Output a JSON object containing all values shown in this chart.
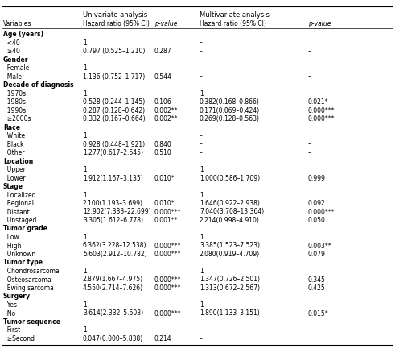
{
  "col_x_fracs": {
    "var": 0.002,
    "uni_hr": 0.21,
    "uni_p": 0.385,
    "multi_hr": 0.505,
    "multi_p": 0.78
  },
  "rows": [
    {
      "label": "Age (years)",
      "indent": false,
      "bold": true,
      "uni_hr": "",
      "uni_p": "",
      "multi_hr": "",
      "multi_p": ""
    },
    {
      "label": "<40",
      "indent": true,
      "bold": false,
      "uni_hr": "1",
      "uni_p": "",
      "multi_hr": "–",
      "multi_p": ""
    },
    {
      "label": "≥40",
      "indent": true,
      "bold": false,
      "uni_hr": "0.797 (0.525–1.210)",
      "uni_p": "0.287",
      "multi_hr": "–",
      "multi_p": "–"
    },
    {
      "label": "Gender",
      "indent": false,
      "bold": true,
      "uni_hr": "",
      "uni_p": "",
      "multi_hr": "",
      "multi_p": ""
    },
    {
      "label": "Female",
      "indent": true,
      "bold": false,
      "uni_hr": "1",
      "uni_p": "",
      "multi_hr": "–",
      "multi_p": ""
    },
    {
      "label": "Male",
      "indent": true,
      "bold": false,
      "uni_hr": "1.136 (0.752–1.717)",
      "uni_p": "0.544",
      "multi_hr": "–",
      "multi_p": "–"
    },
    {
      "label": "Decade of diagnosis",
      "indent": false,
      "bold": true,
      "uni_hr": "",
      "uni_p": "",
      "multi_hr": "",
      "multi_p": ""
    },
    {
      "label": "1970s",
      "indent": true,
      "bold": false,
      "uni_hr": "1",
      "uni_p": "",
      "multi_hr": "1",
      "multi_p": ""
    },
    {
      "label": "1980s",
      "indent": true,
      "bold": false,
      "uni_hr": "0.528 (0.244–1.145)",
      "uni_p": "0.106",
      "multi_hr": "0.382(0.168–0.866)",
      "multi_p": "0.021*"
    },
    {
      "label": "1990s",
      "indent": true,
      "bold": false,
      "uni_hr": "0.287 (0.128–0.642)",
      "uni_p": "0.002**",
      "multi_hr": "0.171(0.069–0.424)",
      "multi_p": "0.000***"
    },
    {
      "label": "≥2000s",
      "indent": true,
      "bold": false,
      "uni_hr": "0.332 (0.167–0.664)",
      "uni_p": "0.002**",
      "multi_hr": "0.269(0.128–0.563)",
      "multi_p": "0.000***"
    },
    {
      "label": "Race",
      "indent": false,
      "bold": true,
      "uni_hr": "",
      "uni_p": "",
      "multi_hr": "",
      "multi_p": ""
    },
    {
      "label": "White",
      "indent": true,
      "bold": false,
      "uni_hr": "1",
      "uni_p": "",
      "multi_hr": "–",
      "multi_p": ""
    },
    {
      "label": "Black",
      "indent": true,
      "bold": false,
      "uni_hr": "0.928 (0.448–1.921)",
      "uni_p": "0.840",
      "multi_hr": "–",
      "multi_p": "–"
    },
    {
      "label": "Other",
      "indent": true,
      "bold": false,
      "uni_hr": "1.277(0.617–2.645)",
      "uni_p": "0.510",
      "multi_hr": "–",
      "multi_p": "–"
    },
    {
      "label": "Location",
      "indent": false,
      "bold": true,
      "uni_hr": "",
      "uni_p": "",
      "multi_hr": "",
      "multi_p": ""
    },
    {
      "label": "Upper",
      "indent": true,
      "bold": false,
      "uni_hr": "1",
      "uni_p": "",
      "multi_hr": "1",
      "multi_p": ""
    },
    {
      "label": "Lower",
      "indent": true,
      "bold": false,
      "uni_hr": "1.912(1.167–3.135)",
      "uni_p": "0.010*",
      "multi_hr": "1.000(0.586–1.709)",
      "multi_p": "0.999"
    },
    {
      "label": "Stage",
      "indent": false,
      "bold": true,
      "uni_hr": "",
      "uni_p": "",
      "multi_hr": "",
      "multi_p": ""
    },
    {
      "label": "Localized",
      "indent": true,
      "bold": false,
      "uni_hr": "1",
      "uni_p": "",
      "multi_hr": "1",
      "multi_p": ""
    },
    {
      "label": "Regional",
      "indent": true,
      "bold": false,
      "uni_hr": "2.100(1.193–3.699)",
      "uni_p": "0.010*",
      "multi_hr": "1.646(0.922–2.938)",
      "multi_p": "0.092"
    },
    {
      "label": "Distant",
      "indent": true,
      "bold": false,
      "uni_hr": "12.902(7.333–22.699)",
      "uni_p": "0.000***",
      "multi_hr": "7.040(3.708–13.364)",
      "multi_p": "0.000***"
    },
    {
      "label": "Unstaged",
      "indent": true,
      "bold": false,
      "uni_hr": "3.305(1.612–6.778)",
      "uni_p": "0.001**",
      "multi_hr": "2.214(0.998–4.910)",
      "multi_p": "0.050"
    },
    {
      "label": "Tumor grade",
      "indent": false,
      "bold": true,
      "uni_hr": "",
      "uni_p": "",
      "multi_hr": "",
      "multi_p": ""
    },
    {
      "label": "Low",
      "indent": true,
      "bold": false,
      "uni_hr": "1",
      "uni_p": "",
      "multi_hr": "1",
      "multi_p": ""
    },
    {
      "label": "High",
      "indent": true,
      "bold": false,
      "uni_hr": "6.362(3.228–12.538)",
      "uni_p": "0.000***",
      "multi_hr": "3.385(1.523–7.523)",
      "multi_p": "0.003**"
    },
    {
      "label": "Unknown",
      "indent": true,
      "bold": false,
      "uni_hr": "5.603(2.912–10.782)",
      "uni_p": "0.000***",
      "multi_hr": "2.080(0.919–4.709)",
      "multi_p": "0.079"
    },
    {
      "label": "Tumor type",
      "indent": false,
      "bold": true,
      "uni_hr": "",
      "uni_p": "",
      "multi_hr": "",
      "multi_p": ""
    },
    {
      "label": "Chondrosarcoma",
      "indent": true,
      "bold": false,
      "uni_hr": "1",
      "uni_p": "",
      "multi_hr": "1",
      "multi_p": ""
    },
    {
      "label": "Osteosarcoma",
      "indent": true,
      "bold": false,
      "uni_hr": "2.879(1.667–4.975)",
      "uni_p": "0.000***",
      "multi_hr": "1.347(0.726–2.501)",
      "multi_p": "0.345"
    },
    {
      "label": "Ewing sarcoma",
      "indent": true,
      "bold": false,
      "uni_hr": "4.550(2.714–7.626)",
      "uni_p": "0.000***",
      "multi_hr": "1.313(0.672–2.567)",
      "multi_p": "0.425"
    },
    {
      "label": "Surgery",
      "indent": false,
      "bold": true,
      "uni_hr": "",
      "uni_p": "",
      "multi_hr": "",
      "multi_p": ""
    },
    {
      "label": "Yes",
      "indent": true,
      "bold": false,
      "uni_hr": "1",
      "uni_p": "",
      "multi_hr": "1",
      "multi_p": ""
    },
    {
      "label": "No",
      "indent": true,
      "bold": false,
      "uni_hr": "3.614(2.332–5.603)",
      "uni_p": "0.000***",
      "multi_hr": "1.890(1.133–3.151)",
      "multi_p": "0.015*"
    },
    {
      "label": "Tumor sequence",
      "indent": false,
      "bold": true,
      "uni_hr": "",
      "uni_p": "",
      "multi_hr": "",
      "multi_p": ""
    },
    {
      "label": "First",
      "indent": true,
      "bold": false,
      "uni_hr": "1",
      "uni_p": "",
      "multi_hr": "–",
      "multi_p": ""
    },
    {
      "label": "≥Second",
      "indent": true,
      "bold": false,
      "uni_hr": "0.047(0.000–5.838)",
      "uni_p": "0.214",
      "multi_hr": "–",
      "multi_p": ""
    }
  ],
  "font_size": 5.5,
  "indent_str": "  "
}
